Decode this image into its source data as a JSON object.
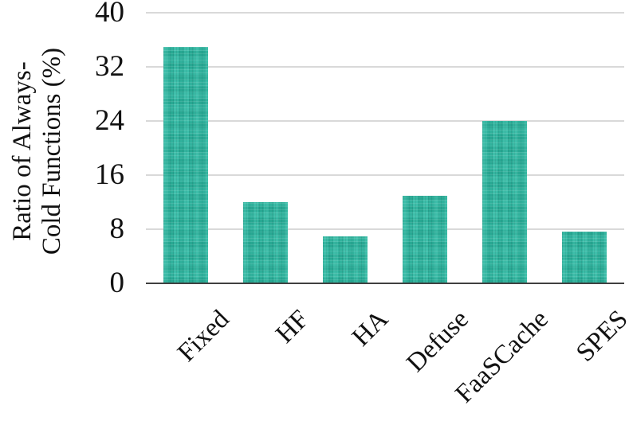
{
  "chart_data": {
    "type": "bar",
    "title": "",
    "categories": [
      "Fixed",
      "HF",
      "HA",
      "Defuse",
      "FaaSCache",
      "SPES"
    ],
    "values": [
      35,
      12,
      6.9,
      13,
      24,
      7.7
    ],
    "xlabel": "",
    "ylabel": "Ratio of Always-Cold Functions (%)",
    "ylabel_lines": [
      "Ratio of Always-",
      "Cold Functions (%)"
    ],
    "yticks": [
      0,
      8,
      16,
      24,
      32,
      40
    ],
    "ylim": [
      0,
      40
    ],
    "grid": true,
    "legend_position": "none",
    "bar_color": "#2cb8a1",
    "gridline_color": "#d9d9d9",
    "axis_color": "#404040",
    "text_color": "#111111"
  }
}
